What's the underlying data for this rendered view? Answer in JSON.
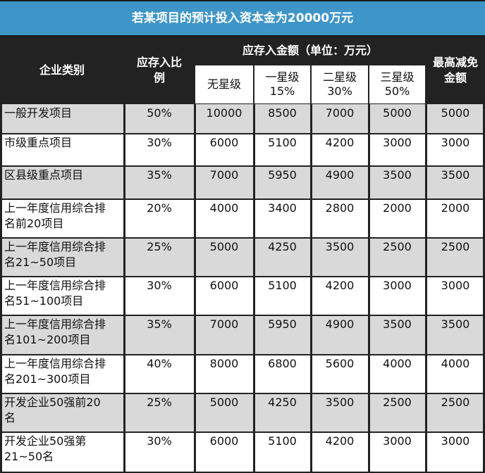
{
  "title": "若某项目的预计投入资本金为20000万元",
  "header": {
    "category": "企业类别",
    "ratio": "应存入比\n例",
    "amount_group": "应存入金额（单位：万元）",
    "levels": [
      "无星级",
      "一星级\n15%",
      "二星级\n30%",
      "三星级\n50%"
    ],
    "max_reduction": "最高减免\n金额"
  },
  "rows": [
    {
      "category": "一般开发项目",
      "ratio": "50%",
      "amounts": [
        "10000",
        "8500",
        "7000",
        "5000"
      ],
      "max": "5000"
    },
    {
      "category": "市级重点项目",
      "ratio": "30%",
      "amounts": [
        "6000",
        "5100",
        "4200",
        "3000"
      ],
      "max": "3000"
    },
    {
      "category": "区县级重点项目",
      "ratio": "35%",
      "amounts": [
        "7000",
        "5950",
        "4900",
        "3500"
      ],
      "max": "3500"
    },
    {
      "category": "上一年度信用综合排\n名前20项目",
      "ratio": "20%",
      "amounts": [
        "4000",
        "3400",
        "2800",
        "2000"
      ],
      "max": "2000"
    },
    {
      "category": "上一年度信用综合排\n名21~50项目",
      "ratio": "25%",
      "amounts": [
        "5000",
        "4250",
        "3500",
        "2500"
      ],
      "max": "2500"
    },
    {
      "category": "上一年度信用综合排\n名51~100项目",
      "ratio": "30%",
      "amounts": [
        "6000",
        "5100",
        "4200",
        "3000"
      ],
      "max": "3000"
    },
    {
      "category": "上一年度信用综合排\n名101~200项目",
      "ratio": "35%",
      "amounts": [
        "7000",
        "5950",
        "4900",
        "3500"
      ],
      "max": "3500"
    },
    {
      "category": "上一年度信用综合排\n名201~300项目",
      "ratio": "40%",
      "amounts": [
        "8000",
        "6800",
        "5600",
        "4000"
      ],
      "max": "4000"
    },
    {
      "category": "开发企业50强前20\n名",
      "ratio": "25%",
      "amounts": [
        "5000",
        "4250",
        "3500",
        "2500"
      ],
      "max": "2500"
    },
    {
      "category": "开发企业50强第\n21~50名",
      "ratio": "30%",
      "amounts": [
        "6000",
        "5100",
        "4200",
        "3000"
      ],
      "max": "3000"
    }
  ]
}
